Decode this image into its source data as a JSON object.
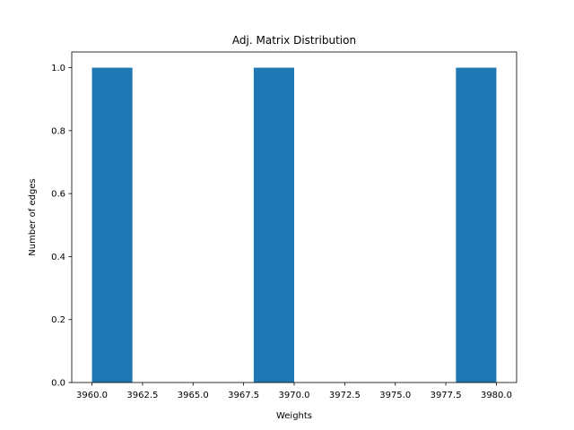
{
  "chart_data": {
    "type": "bar",
    "title": "Adj. Matrix Distribution",
    "xlabel": "Weights",
    "ylabel": "Number of edges",
    "xlim": [
      3959.0,
      3981.0
    ],
    "ylim": [
      0.0,
      1.05
    ],
    "bins": [
      {
        "x0": 3960.0,
        "x1": 3962.0,
        "count": 1
      },
      {
        "x0": 3968.0,
        "x1": 3970.0,
        "count": 1
      },
      {
        "x0": 3978.0,
        "x1": 3980.0,
        "count": 1
      }
    ],
    "xticks": [
      3960.0,
      3962.5,
      3965.0,
      3967.5,
      3970.0,
      3972.5,
      3975.0,
      3977.5,
      3980.0
    ],
    "xtick_labels": [
      "3960.0",
      "3962.5",
      "3965.0",
      "3967.5",
      "3970.0",
      "3972.5",
      "3975.0",
      "3977.5",
      "3980.0"
    ],
    "yticks": [
      0.0,
      0.2,
      0.4,
      0.6,
      0.8,
      1.0
    ],
    "ytick_labels": [
      "0.0",
      "0.2",
      "0.4",
      "0.6",
      "0.8",
      "1.0"
    ],
    "bar_color": "#1f77b4",
    "grid": false,
    "legend": "none"
  }
}
